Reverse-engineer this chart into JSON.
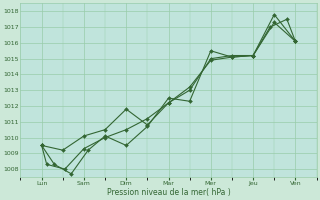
{
  "xlabel": "Pression niveau de la mer( hPa )",
  "background_color": "#cce8d8",
  "plot_bg_color": "#c0e4dc",
  "grid_color": "#99ccaa",
  "line_color": "#336633",
  "x_ticks": [
    0,
    1,
    2,
    3,
    4,
    5,
    6
  ],
  "x_labels": [
    "Lun",
    "Sam",
    "Dim",
    "Mar",
    "Mer",
    "Jeu",
    "Ven"
  ],
  "ylim": [
    1007.5,
    1018.5
  ],
  "yticks": [
    1008,
    1009,
    1010,
    1011,
    1012,
    1013,
    1014,
    1015,
    1016,
    1017,
    1018
  ],
  "line1_x": [
    0.0,
    0.12,
    0.55,
    1.0,
    1.5,
    2.0,
    2.5,
    3.0,
    3.5,
    4.0,
    4.5,
    5.0,
    5.5,
    6.0
  ],
  "line1_y": [
    1009.5,
    1008.3,
    1008.0,
    1009.3,
    1010.0,
    1010.5,
    1011.2,
    1012.2,
    1013.0,
    1015.0,
    1015.2,
    1015.2,
    1017.3,
    1016.1
  ],
  "line2_x": [
    0.0,
    0.3,
    0.7,
    1.1,
    1.5,
    2.0,
    2.5,
    3.0,
    3.5,
    4.0,
    4.5,
    5.0,
    5.5,
    6.0
  ],
  "line2_y": [
    1009.5,
    1008.3,
    1007.7,
    1009.2,
    1010.1,
    1009.5,
    1010.7,
    1012.5,
    1012.3,
    1015.5,
    1015.1,
    1015.2,
    1017.8,
    1016.1
  ],
  "line3_x": [
    0.0,
    0.5,
    1.0,
    1.5,
    2.0,
    2.5,
    3.0,
    3.5,
    4.0,
    4.5,
    5.0,
    5.4,
    5.8,
    6.0
  ],
  "line3_y": [
    1009.5,
    1009.2,
    1010.1,
    1010.5,
    1011.8,
    1010.8,
    1012.2,
    1013.2,
    1014.9,
    1015.1,
    1015.2,
    1017.0,
    1017.5,
    1016.1
  ],
  "figsize": [
    3.2,
    2.0
  ],
  "dpi": 100
}
